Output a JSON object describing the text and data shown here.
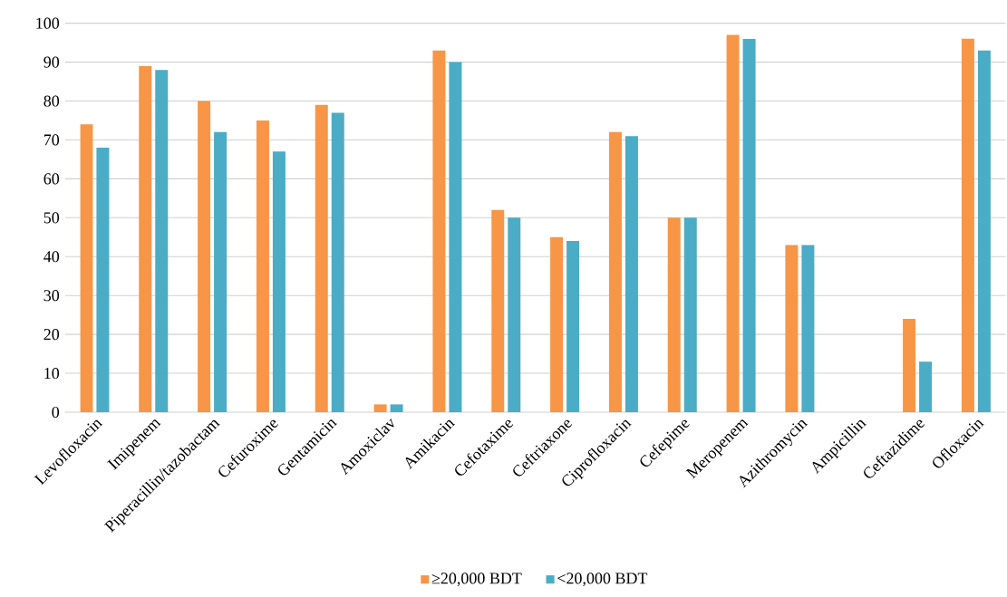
{
  "chart_data": {
    "type": "bar",
    "categories": [
      "Levofloxacin",
      "Imipenem",
      "Piperacillin/tazobactam",
      "Cefuroxime",
      "Gentamicin",
      "Amoxiclav",
      "Amikacin",
      "Cefotaxime",
      "Ceftriaxone",
      "Ciprofloxacin",
      "Cefepime",
      "Meropenem",
      "Azithromycin",
      "Ampicillin",
      "Ceftazidime",
      "Ofloxacin"
    ],
    "series": [
      {
        "name": "≥20,000 BDT",
        "color": "#f79646",
        "values": [
          74,
          89,
          80,
          75,
          79,
          2,
          93,
          52,
          45,
          72,
          50,
          97,
          43,
          0,
          24,
          96
        ]
      },
      {
        "name": "<20,000 BDT",
        "color": "#4bacc6",
        "values": [
          68,
          88,
          72,
          67,
          77,
          2,
          90,
          50,
          44,
          71,
          50,
          96,
          43,
          0,
          13,
          93
        ]
      }
    ],
    "ylim": [
      0,
      100
    ],
    "yticks": [
      0,
      10,
      20,
      30,
      40,
      50,
      60,
      70,
      80,
      90,
      100
    ],
    "grid": "y",
    "legend": "bottom"
  }
}
